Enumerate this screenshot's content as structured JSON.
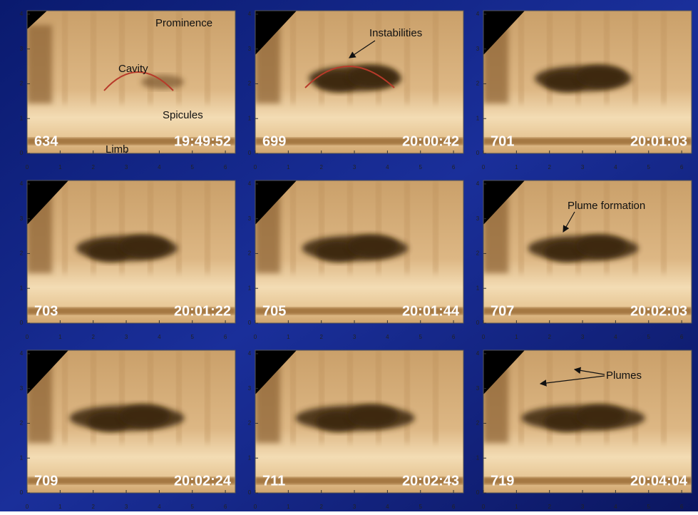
{
  "x_ticks": [
    0,
    1,
    2,
    3,
    4,
    5,
    6
  ],
  "y_ticks": [
    0,
    1,
    2,
    3,
    4
  ],
  "panels": [
    {
      "frame": "634",
      "time": "19:49:52",
      "annotations": [
        "Prominence",
        "Cavity",
        "Spicules",
        "Limb"
      ]
    },
    {
      "frame": "699",
      "time": "20:00:42",
      "annotations": [
        "Instabilities"
      ]
    },
    {
      "frame": "701",
      "time": "20:01:03",
      "annotations": []
    },
    {
      "frame": "703",
      "time": "20:01:22",
      "annotations": []
    },
    {
      "frame": "705",
      "time": "20:01:44",
      "annotations": []
    },
    {
      "frame": "707",
      "time": "20:02:03",
      "annotations": [
        "Plume formation"
      ]
    },
    {
      "frame": "709",
      "time": "20:02:24",
      "annotations": []
    },
    {
      "frame": "711",
      "time": "20:02:43",
      "annotations": []
    },
    {
      "frame": "719",
      "time": "20:04:04",
      "annotations": [
        "Plumes"
      ]
    }
  ]
}
